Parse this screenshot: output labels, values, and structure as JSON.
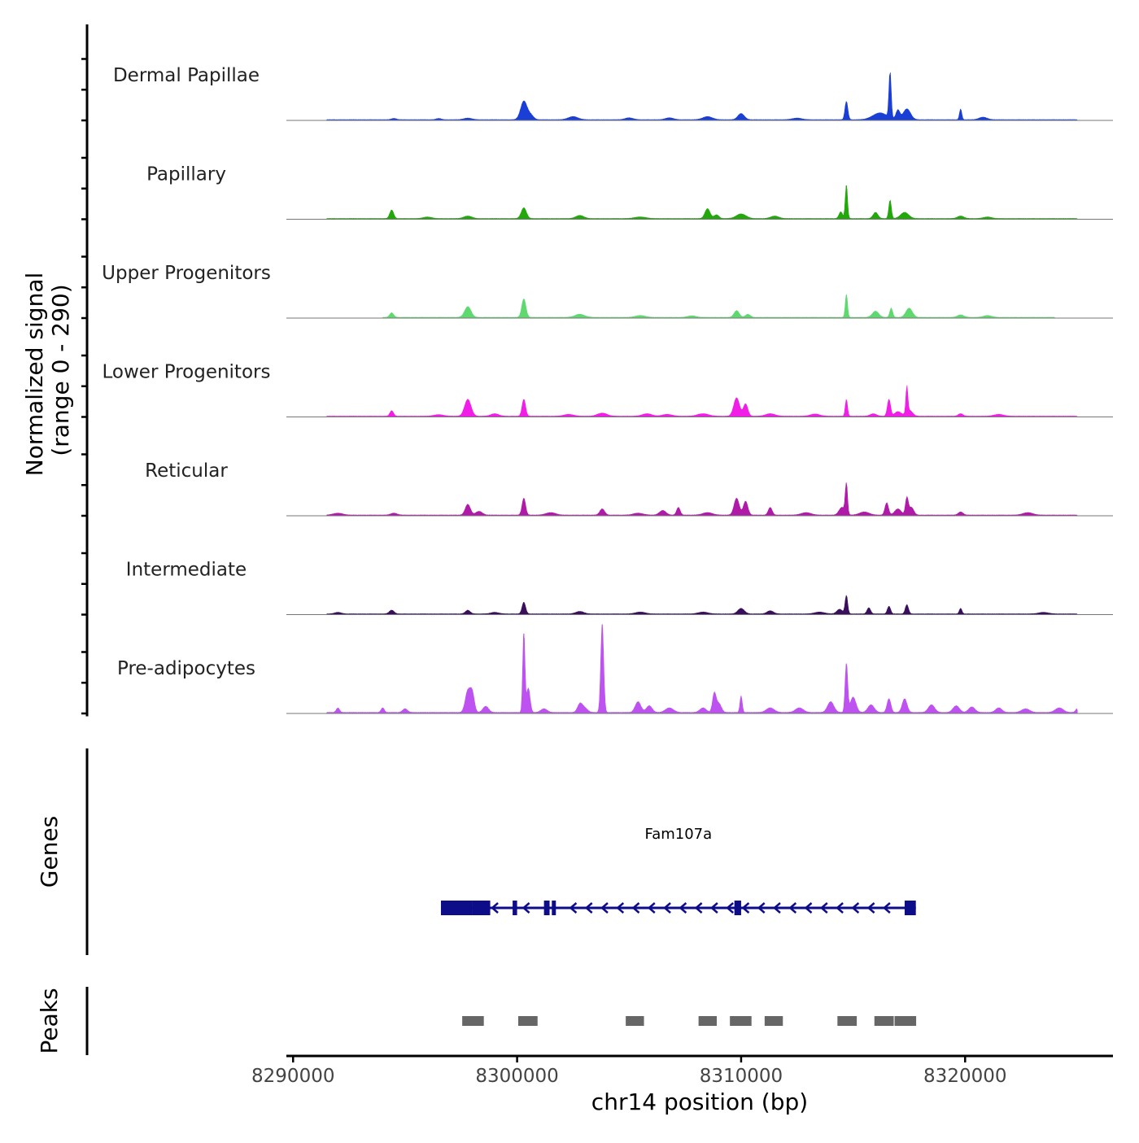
{
  "chart_data": {
    "type": "area",
    "title": "",
    "chromosome": "chr14",
    "xlabel": "chr14 position (bp)",
    "xlim": [
      8290000,
      8326000
    ],
    "xticks": [
      8290000,
      8300000,
      8310000,
      8320000
    ],
    "xtick_labels": [
      "8290000",
      "8300000",
      "8310000",
      "8320000"
    ],
    "ylabel_line1": "Normalized signal",
    "ylabel_line2": "(range 0 - 290)",
    "ylim": [
      0,
      290
    ],
    "tracks": [
      {
        "name": "Dermal Papillae",
        "color": "#1a3fd6",
        "baseline": [
          [
            8291500,
            3
          ],
          [
            8325000,
            2
          ]
        ],
        "peaks": [
          [
            8294500,
            4,
            150
          ],
          [
            8296500,
            4,
            150
          ],
          [
            8297800,
            5,
            250
          ],
          [
            8300300,
            60,
            200
          ],
          [
            8300600,
            15,
            180
          ],
          [
            8302500,
            10,
            300
          ],
          [
            8305000,
            6,
            250
          ],
          [
            8306800,
            6,
            250
          ],
          [
            8308500,
            10,
            300
          ],
          [
            8310000,
            20,
            200
          ],
          [
            8312500,
            5,
            300
          ],
          [
            8314700,
            60,
            90
          ],
          [
            8316200,
            22,
            450
          ],
          [
            8316650,
            150,
            70
          ],
          [
            8317000,
            30,
            120
          ],
          [
            8317400,
            35,
            230
          ],
          [
            8319800,
            35,
            70
          ],
          [
            8320800,
            8,
            250
          ]
        ]
      },
      {
        "name": "Papillary",
        "color": "#22a80a",
        "baseline": [
          [
            8291500,
            3
          ],
          [
            8325000,
            2
          ]
        ],
        "peaks": [
          [
            8294400,
            28,
            120
          ],
          [
            8296000,
            5,
            250
          ],
          [
            8297800,
            8,
            250
          ],
          [
            8300300,
            35,
            160
          ],
          [
            8302800,
            10,
            250
          ],
          [
            8305500,
            5,
            350
          ],
          [
            8308500,
            32,
            160
          ],
          [
            8308900,
            12,
            150
          ],
          [
            8310000,
            15,
            300
          ],
          [
            8311500,
            8,
            250
          ],
          [
            8314700,
            110,
            70
          ],
          [
            8314450,
            22,
            110
          ],
          [
            8316000,
            20,
            150
          ],
          [
            8316650,
            60,
            80
          ],
          [
            8317300,
            20,
            250
          ],
          [
            8319800,
            8,
            200
          ],
          [
            8321000,
            5,
            250
          ]
        ]
      },
      {
        "name": "Upper Progenitors",
        "color": "#5fd96f",
        "baseline": [
          [
            8294000,
            3
          ],
          [
            8324000,
            2
          ]
        ],
        "peaks": [
          [
            8294400,
            15,
            120
          ],
          [
            8297800,
            35,
            200
          ],
          [
            8300300,
            60,
            130
          ],
          [
            8302800,
            10,
            300
          ],
          [
            8305500,
            6,
            300
          ],
          [
            8307800,
            5,
            250
          ],
          [
            8309800,
            22,
            160
          ],
          [
            8310300,
            10,
            150
          ],
          [
            8314700,
            75,
            70
          ],
          [
            8316000,
            20,
            200
          ],
          [
            8316700,
            30,
            90
          ],
          [
            8317500,
            30,
            200
          ],
          [
            8319800,
            8,
            200
          ],
          [
            8321000,
            6,
            250
          ]
        ]
      },
      {
        "name": "Lower Progenitors",
        "color": "#f01ee6",
        "baseline": [
          [
            8291500,
            3
          ],
          [
            8325000,
            2
          ]
        ],
        "peaks": [
          [
            8294400,
            18,
            110
          ],
          [
            8296500,
            5,
            300
          ],
          [
            8297800,
            55,
            200
          ],
          [
            8299000,
            8,
            250
          ],
          [
            8300300,
            55,
            110
          ],
          [
            8302300,
            6,
            300
          ],
          [
            8303800,
            10,
            300
          ],
          [
            8305800,
            8,
            300
          ],
          [
            8306700,
            6,
            300
          ],
          [
            8308300,
            8,
            350
          ],
          [
            8309800,
            60,
            180
          ],
          [
            8310200,
            40,
            140
          ],
          [
            8311300,
            8,
            300
          ],
          [
            8313300,
            7,
            300
          ],
          [
            8314700,
            55,
            70
          ],
          [
            8315900,
            8,
            200
          ],
          [
            8316600,
            55,
            100
          ],
          [
            8317000,
            15,
            200
          ],
          [
            8317400,
            85,
            60
          ],
          [
            8317500,
            20,
            200
          ],
          [
            8319800,
            8,
            150
          ],
          [
            8321500,
            6,
            300
          ]
        ]
      },
      {
        "name": "Reticular",
        "color": "#b01aa8",
        "baseline": [
          [
            8291500,
            3
          ],
          [
            8325000,
            2
          ]
        ],
        "peaks": [
          [
            8292000,
            6,
            300
          ],
          [
            8294500,
            6,
            200
          ],
          [
            8297800,
            35,
            160
          ],
          [
            8298300,
            12,
            200
          ],
          [
            8300300,
            55,
            110
          ],
          [
            8301500,
            8,
            300
          ],
          [
            8303800,
            20,
            150
          ],
          [
            8305400,
            6,
            300
          ],
          [
            8306500,
            15,
            200
          ],
          [
            8307200,
            25,
            110
          ],
          [
            8308500,
            8,
            300
          ],
          [
            8309800,
            55,
            160
          ],
          [
            8310200,
            45,
            140
          ],
          [
            8311300,
            25,
            120
          ],
          [
            8312900,
            8,
            300
          ],
          [
            8314500,
            25,
            180
          ],
          [
            8314700,
            100,
            70
          ],
          [
            8315500,
            10,
            300
          ],
          [
            8316500,
            40,
            110
          ],
          [
            8317000,
            20,
            200
          ],
          [
            8317400,
            55,
            90
          ],
          [
            8317600,
            25,
            150
          ],
          [
            8319800,
            10,
            150
          ],
          [
            8322800,
            8,
            300
          ]
        ]
      },
      {
        "name": "Intermediate",
        "color": "#3a0f5c",
        "baseline": [
          [
            8291500,
            3
          ],
          [
            8325000,
            2
          ]
        ],
        "peaks": [
          [
            8292000,
            5,
            200
          ],
          [
            8294400,
            12,
            150
          ],
          [
            8297800,
            12,
            150
          ],
          [
            8299000,
            5,
            250
          ],
          [
            8300300,
            38,
            110
          ],
          [
            8302800,
            8,
            250
          ],
          [
            8305500,
            6,
            300
          ],
          [
            8308300,
            6,
            300
          ],
          [
            8310000,
            18,
            200
          ],
          [
            8311300,
            10,
            200
          ],
          [
            8313500,
            6,
            300
          ],
          [
            8314700,
            60,
            80
          ],
          [
            8314400,
            15,
            180
          ],
          [
            8315700,
            20,
            110
          ],
          [
            8316600,
            25,
            100
          ],
          [
            8317400,
            30,
            100
          ],
          [
            8319800,
            18,
            80
          ],
          [
            8323500,
            5,
            300
          ]
        ]
      },
      {
        "name": "Pre-adipocytes",
        "color": "#be52f0",
        "baseline": [
          [
            8291500,
            4
          ],
          [
            8325000,
            3
          ]
        ],
        "peaks": [
          [
            8292000,
            15,
            100
          ],
          [
            8294000,
            15,
            100
          ],
          [
            8295000,
            12,
            150
          ],
          [
            8297800,
            70,
            160
          ],
          [
            8298000,
            60,
            130
          ],
          [
            8298600,
            20,
            180
          ],
          [
            8300300,
            260,
            70
          ],
          [
            8300500,
            80,
            110
          ],
          [
            8301200,
            12,
            200
          ],
          [
            8302800,
            25,
            150
          ],
          [
            8303000,
            15,
            200
          ],
          [
            8303800,
            290,
            90
          ],
          [
            8305400,
            35,
            180
          ],
          [
            8305900,
            22,
            180
          ],
          [
            8306800,
            15,
            250
          ],
          [
            8308300,
            15,
            200
          ],
          [
            8308800,
            60,
            110
          ],
          [
            8309000,
            30,
            160
          ],
          [
            8310000,
            55,
            70
          ],
          [
            8311300,
            15,
            250
          ],
          [
            8312600,
            15,
            250
          ],
          [
            8314000,
            35,
            200
          ],
          [
            8314700,
            160,
            80
          ],
          [
            8315000,
            50,
            180
          ],
          [
            8315800,
            25,
            200
          ],
          [
            8316600,
            45,
            120
          ],
          [
            8317300,
            45,
            150
          ],
          [
            8318500,
            25,
            200
          ],
          [
            8319600,
            22,
            200
          ],
          [
            8320300,
            18,
            200
          ],
          [
            8321500,
            15,
            200
          ],
          [
            8322700,
            12,
            250
          ],
          [
            8324200,
            15,
            250
          ],
          [
            8325000,
            12,
            100
          ]
        ]
      }
    ],
    "genes_label": "Genes",
    "gene": {
      "name": "Fam107a",
      "start": 8296600,
      "end": 8317800,
      "strand": "-",
      "color": "#0d0d8a",
      "exons": [
        [
          8296600,
          8298000
        ],
        [
          8298000,
          8298800
        ],
        [
          8299800,
          8300000
        ],
        [
          8301200,
          8301450
        ],
        [
          8301550,
          8301700
        ],
        [
          8309700,
          8310000
        ],
        [
          8317300,
          8317800
        ]
      ]
    },
    "peaks_label": "Peaks",
    "peaks_color": "#666666",
    "peak_regions": [
      [
        8297550,
        8298550
      ],
      [
        8300050,
        8300950
      ],
      [
        8304850,
        8305700
      ],
      [
        8308100,
        8308950
      ],
      [
        8309500,
        8310500
      ],
      [
        8311050,
        8311900
      ],
      [
        8314300,
        8315200
      ],
      [
        8315950,
        8316850
      ],
      [
        8316850,
        8317850
      ]
    ]
  }
}
